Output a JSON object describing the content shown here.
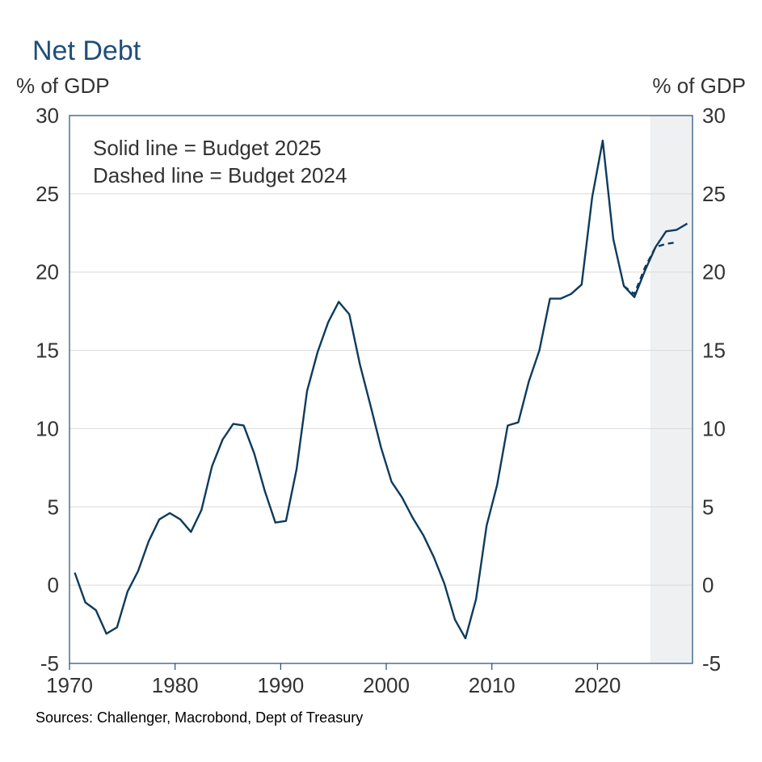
{
  "chart_data": {
    "type": "line",
    "title": "Net Debt",
    "ylabel_left": "% of GDP",
    "ylabel_right": "% of GDP",
    "xlim": [
      1970,
      2029
    ],
    "ylim": [
      -5,
      30
    ],
    "x_ticks": [
      "1970",
      "1980",
      "1990",
      "2000",
      "2010",
      "2020"
    ],
    "y_ticks": [
      "-5",
      "0",
      "5",
      "10",
      "15",
      "20",
      "25",
      "30"
    ],
    "grid": true,
    "forecast_shading": [
      2025,
      2029
    ],
    "annotations": [
      "Solid line = Budget 2025",
      "Dashed line = Budget 2024"
    ],
    "source": "Sources: Challenger, Macrobond, Dept of Treasury",
    "colors": {
      "line": "#0d3b5c",
      "title": "#1f4e79",
      "shade": "#eef0f2",
      "grid": "#d9d9d9"
    },
    "series": [
      {
        "style": "solid",
        "x": [
          1970.5,
          1971.5,
          1972.5,
          1973.5,
          1974.5,
          1975.5,
          1976.5,
          1977.5,
          1978.5,
          1979.5,
          1980.5,
          1981.5,
          1982.5,
          1983.5,
          1984.5,
          1985.5,
          1986.5,
          1987.5,
          1988.5,
          1989.5,
          1990.5,
          1991.5,
          1992.5,
          1993.5,
          1994.5,
          1995.5,
          1996.5,
          1997.5,
          1998.5,
          1999.5,
          2000.5,
          2001.5,
          2002.5,
          2003.5,
          2004.5,
          2005.5,
          2006.5,
          2007.5,
          2008.5,
          2009.5,
          2010.5,
          2011.5,
          2012.5,
          2013.5,
          2014.5,
          2015.5,
          2016.5,
          2017.5,
          2018.5,
          2019.5,
          2020.5,
          2021.5,
          2022.5,
          2023.5,
          2024.5,
          2025.5,
          2026.5,
          2027.5,
          2028.5
        ],
        "y": [
          0.8,
          -1.1,
          -1.6,
          -3.1,
          -2.7,
          -0.4,
          0.9,
          2.8,
          4.2,
          4.6,
          4.2,
          3.4,
          4.8,
          7.6,
          9.3,
          10.3,
          10.2,
          8.4,
          6.0,
          4.0,
          4.1,
          7.4,
          12.4,
          14.9,
          16.8,
          18.1,
          17.3,
          14.1,
          11.5,
          8.8,
          6.6,
          5.6,
          4.3,
          3.2,
          1.8,
          0.1,
          -2.2,
          -3.4,
          -0.9,
          3.8,
          6.4,
          10.2,
          10.4,
          13.0,
          15.0,
          18.3,
          18.3,
          18.6,
          19.2,
          24.8,
          28.4,
          22.1,
          19.1,
          18.4,
          20.1,
          21.6,
          22.6,
          22.7,
          23.1
        ]
      },
      {
        "style": "dashed",
        "x": [
          2022.5,
          2023.5,
          2024.5,
          2025.5,
          2026.5,
          2027.5
        ],
        "y": [
          19.1,
          18.6,
          20.3,
          21.6,
          21.8,
          21.9
        ]
      }
    ]
  }
}
